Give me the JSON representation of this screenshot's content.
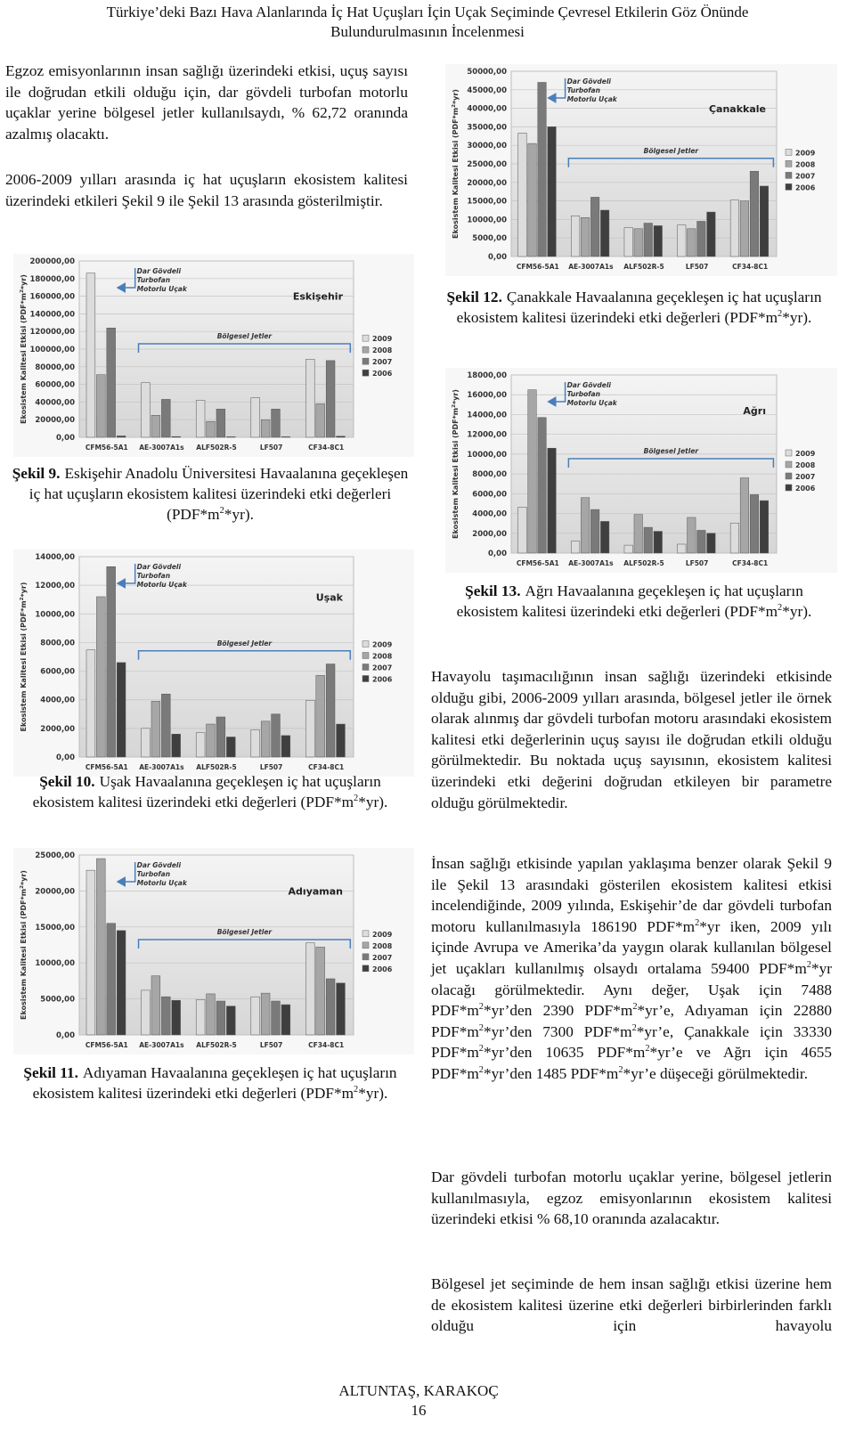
{
  "header": {
    "lines": [
      "Türkiye’deki Bazı Hava Alanlarında İç Hat Uçuşları İçin Uçak Seçiminde Çevresel Etkilerin Göz Önünde",
      "Bulundurulmasının İncelenmesi"
    ]
  },
  "paragraphs": [
    [
      "Egzoz emisyonlarının insan sağlığı üzerindeki etkisi, uçuş sayısı ile doğrudan etkili olduğu için, dar gövdeli turbofan motorlu uçaklar yerine bölgesel jetler kullanılsaydı, % 62,72 oranında azalmış olacaktı."
    ],
    [
      "2006-2009 yılları arasında iç hat uçuşların ekosistem kalitesi üzerindeki etkileri Şekil 9 ile Şekil 13 arasında gösterilmiştir."
    ],
    [
      "Havayolu taşımacılığının insan sağlığı üzerindeki etkisinde olduğu gibi, 2006-2009 yılları arasında, bölgesel jetler ile örnek olarak alınmış dar gövdeli turbofan motoru arasındaki ekosistem kalitesi etki değerlerinin uçuş sayısı ile doğrudan etkili olduğu görülmektedir. Bu noktada uçuş sayısının, ekosistem kalitesi üzerindeki etki değerini doğrudan etkileyen bir parametre olduğu görülmektedir."
    ],
    [
      "İnsan sağlığı etkisinde yapılan yaklaşıma benzer olarak Şekil 9 ile Şekil 13 arasındaki gösterilen ekosistem kalitesi etkisi incelendiğinde, 2009 yılında, Eskişehir’de dar gövdeli turbofan motoru kullanılmasıyla 186190 PDF*m",
      "2",
      "*yr iken, 2009 yılı içinde Avrupa ve Amerika’da yaygın olarak kullanılan bölgesel jet uçakları kullanılmış olsaydı ortalama 59400 PDF*m",
      "2",
      "*yr olacağı görülmektedir. Aynı değer, Uşak için 7488 PDF*m",
      "2",
      "*yr’den 2390 PDF*m",
      "2",
      "*yr’e, Adıyaman için 22880 PDF*m",
      "2",
      "*yr’den 7300 PDF*m",
      "2",
      "*yr’e, Çanakkale için 33330 PDF*m",
      "2",
      "*yr’den 10635 PDF*m",
      "2",
      "*yr’e ve Ağrı için 4655 PDF*m",
      "2",
      "*yr’den 1485 PDF*m",
      "2",
      "*yr’e düşeceği görülmektedir."
    ],
    [
      "Dar gövdeli turbofan motorlu uçaklar yerine, bölgesel jetlerin kullanılmasıyla, egzoz emisyonlarının ekosistem kalitesi üzerindeki etkisi % 68,10 oranında azalacaktır."
    ],
    [
      "Bölgesel jet seçiminde de hem insan sağlığı etkisi üzerine hem de ekosistem kalitesi üzerine etki değerleri birbirlerinden farklı olduğu için havayolu"
    ]
  ],
  "chart_data": [
    {
      "type": "bar",
      "title": "Eskişehir",
      "y_label": [
        "Ekosistem Kalitesi Etkisi (PDF*m",
        "2",
        "*yr)"
      ],
      "wide_body_note": [
        "Dar Gövdeli",
        "Turbofan",
        "Motorlu Uçak"
      ],
      "regional_note": "Bölgesel Jetler",
      "grid": true,
      "categories": [
        "CFM56-5A1",
        "AE-3007A1s",
        "ALF502R-5",
        "LF507",
        "CF34-8C1"
      ],
      "series": [
        {
          "name": "2009",
          "color": "#dcdcdc",
          "values": [
            186190,
            62000,
            42000,
            45000,
            88500
          ]
        },
        {
          "name": "2008",
          "color": "#a6a6a6",
          "values": [
            71000,
            25000,
            18000,
            20000,
            38000
          ]
        },
        {
          "name": "2007",
          "color": "#7a7a7a",
          "values": [
            124000,
            43000,
            32000,
            32000,
            87000
          ]
        },
        {
          "name": "2006",
          "color": "#3f3f3f",
          "values": [
            1500,
            800,
            600,
            600,
            1200
          ]
        }
      ],
      "ylim": [
        0,
        200000
      ],
      "yticks": [
        {
          "value": 0,
          "label": "0,00"
        },
        {
          "value": 20000,
          "label": "20000,00"
        },
        {
          "value": 40000,
          "label": "40000,00"
        },
        {
          "value": 60000,
          "label": "60000,00"
        },
        {
          "value": 80000,
          "label": "80000,00"
        },
        {
          "value": 100000,
          "label": "100000,00"
        },
        {
          "value": 120000,
          "label": "120000,00"
        },
        {
          "value": 140000,
          "label": "140000,00"
        },
        {
          "value": 160000,
          "label": "160000,00"
        },
        {
          "value": 180000,
          "label": "180000,00"
        },
        {
          "value": 200000,
          "label": "200000,00"
        }
      ],
      "caption_label": "Şekil 9.",
      "caption": [
        "Eskişehir Anadolu Üniversitesi Havaalanına geçekleşen iç hat uçuşların ekosistem kalitesi üzerindeki etki değerleri (PDF*m",
        "2",
        "*yr)."
      ]
    },
    {
      "type": "bar",
      "title": "Uşak",
      "y_label": [
        "Ekosistem Kalitesi Etkisi (PDF*m",
        "2",
        "*yr)"
      ],
      "wide_body_note": [
        "Dar Gövdeli",
        "Turbofan",
        "Motorlu Uçak"
      ],
      "regional_note": "Bölgesel Jetler",
      "grid": true,
      "categories": [
        "CFM56-5A1",
        "AE-3007A1s",
        "ALF502R-5",
        "LF507",
        "CF34-8C1"
      ],
      "series": [
        {
          "name": "2009",
          "color": "#dcdcdc",
          "values": [
            7488,
            2000,
            1700,
            1900,
            3960
          ]
        },
        {
          "name": "2008",
          "color": "#a6a6a6",
          "values": [
            11200,
            3900,
            2300,
            2500,
            5700
          ]
        },
        {
          "name": "2007",
          "color": "#7a7a7a",
          "values": [
            13300,
            4400,
            2800,
            3000,
            6500
          ]
        },
        {
          "name": "2006",
          "color": "#3f3f3f",
          "values": [
            6600,
            1600,
            1400,
            1500,
            2300
          ]
        }
      ],
      "ylim": [
        0,
        14000
      ],
      "yticks": [
        {
          "value": 0,
          "label": "0,00"
        },
        {
          "value": 2000,
          "label": "2000,00"
        },
        {
          "value": 4000,
          "label": "4000,00"
        },
        {
          "value": 6000,
          "label": "6000,00"
        },
        {
          "value": 8000,
          "label": "8000,00"
        },
        {
          "value": 10000,
          "label": "10000,00"
        },
        {
          "value": 12000,
          "label": "12000,00"
        },
        {
          "value": 14000,
          "label": "14000,00"
        }
      ],
      "caption_label": "Şekil 10.",
      "caption": [
        "Uşak Havaalanına geçekleşen iç hat uçuşların ekosistem kalitesi üzerindeki etki değerleri (PDF*m",
        "2",
        "*yr)."
      ]
    },
    {
      "type": "bar",
      "title": "Adıyaman",
      "y_label": [
        "Ekosistem Kalitesi Etkisi (PDF*m",
        "2",
        "*yr)"
      ],
      "wide_body_note": [
        "Dar Gövdeli",
        "Turbofan",
        "Motorlu Uçak"
      ],
      "regional_note": "Bölgesel Jetler",
      "grid": true,
      "categories": [
        "CFM56-5A1",
        "AE-3007A1s",
        "ALF502R-5",
        "LF507",
        "CF34-8C1"
      ],
      "series": [
        {
          "name": "2009",
          "color": "#dcdcdc",
          "values": [
            22880,
            6200,
            4900,
            5300,
            12800
          ]
        },
        {
          "name": "2008",
          "color": "#a6a6a6",
          "values": [
            24500,
            8200,
            5700,
            5800,
            12200
          ]
        },
        {
          "name": "2007",
          "color": "#7a7a7a",
          "values": [
            15500,
            5300,
            4700,
            4700,
            7800
          ]
        },
        {
          "name": "2006",
          "color": "#3f3f3f",
          "values": [
            14500,
            4800,
            4000,
            4200,
            7200
          ]
        }
      ],
      "ylim": [
        0,
        25000
      ],
      "yticks": [
        {
          "value": 0,
          "label": "0,00"
        },
        {
          "value": 5000,
          "label": "5000,00"
        },
        {
          "value": 10000,
          "label": "10000,00"
        },
        {
          "value": 15000,
          "label": "15000,00"
        },
        {
          "value": 20000,
          "label": "20000,00"
        },
        {
          "value": 25000,
          "label": "25000,00"
        }
      ],
      "caption_label": "Şekil 11.",
      "caption": [
        "Adıyaman Havaalanına geçekleşen iç hat uçuşların ekosistem kalitesi üzerindeki etki değerleri (PDF*m",
        "2",
        "*yr)."
      ]
    },
    {
      "type": "bar",
      "title": "Çanakkale",
      "y_label": [
        "Ekosistem Kalitesi Etkisi (PDF*m",
        "2",
        "*yr)"
      ],
      "wide_body_note": [
        "Dar Gövdeli",
        "Turbofan",
        "Motorlu Uçak"
      ],
      "regional_note": "Bölgesel Jetler",
      "grid": true,
      "categories": [
        "CFM56-5A1",
        "AE-3007A1s",
        "ALF502R-5",
        "LF507",
        "CF34-8C1"
      ],
      "series": [
        {
          "name": "2009",
          "color": "#dcdcdc",
          "values": [
            33330,
            11000,
            7800,
            8500,
            15240
          ]
        },
        {
          "name": "2008",
          "color": "#a6a6a6",
          "values": [
            30500,
            10500,
            7500,
            7500,
            15000
          ]
        },
        {
          "name": "2007",
          "color": "#7a7a7a",
          "values": [
            47000,
            16000,
            9000,
            9500,
            23000
          ]
        },
        {
          "name": "2006",
          "color": "#3f3f3f",
          "values": [
            35000,
            12500,
            8300,
            12000,
            19000
          ]
        }
      ],
      "ylim": [
        0,
        50000
      ],
      "yticks": [
        {
          "value": 0,
          "label": "0,00"
        },
        {
          "value": 5000,
          "label": "5000,00"
        },
        {
          "value": 10000,
          "label": "10000,00"
        },
        {
          "value": 15000,
          "label": "15000,00"
        },
        {
          "value": 20000,
          "label": "20000,00"
        },
        {
          "value": 25000,
          "label": "25000,00"
        },
        {
          "value": 30000,
          "label": "30000,00"
        },
        {
          "value": 35000,
          "label": "35000,00"
        },
        {
          "value": 40000,
          "label": "40000,00"
        },
        {
          "value": 45000,
          "label": "45000,00"
        },
        {
          "value": 50000,
          "label": "50000,00"
        }
      ],
      "caption_label": "Şekil 12.",
      "caption": [
        "Çanakkale Havaalanına geçekleşen iç hat uçuşların ekosistem kalitesi üzerindeki etki değerleri (PDF*m",
        "2",
        "*yr)."
      ]
    },
    {
      "type": "bar",
      "title": "Ağrı",
      "y_label": [
        "Ekosistem Kalitesi Etkisi (PDF*m",
        "2",
        "*yr)"
      ],
      "wide_body_note": [
        "Dar Gövdeli",
        "Turbofan",
        "Motorlu Uçak"
      ],
      "regional_note": "Bölgesel Jetler",
      "grid": true,
      "categories": [
        "CFM56-5A1",
        "AE-3007A1s",
        "ALF502R-5",
        "LF507",
        "CF34-8C1"
      ],
      "series": [
        {
          "name": "2009",
          "color": "#dcdcdc",
          "values": [
            4655,
            1200,
            800,
            900,
            3040
          ]
        },
        {
          "name": "2008",
          "color": "#a6a6a6",
          "values": [
            16500,
            5600,
            3900,
            3600,
            7600
          ]
        },
        {
          "name": "2007",
          "color": "#7a7a7a",
          "values": [
            13700,
            4400,
            2600,
            2300,
            5900
          ]
        },
        {
          "name": "2006",
          "color": "#3f3f3f",
          "values": [
            10600,
            3200,
            2200,
            2000,
            5300
          ]
        }
      ],
      "ylim": [
        0,
        18000
      ],
      "yticks": [
        {
          "value": 0,
          "label": "0,00"
        },
        {
          "value": 2000,
          "label": "2000,00"
        },
        {
          "value": 4000,
          "label": "4000,00"
        },
        {
          "value": 6000,
          "label": "6000,00"
        },
        {
          "value": 8000,
          "label": "8000,00"
        },
        {
          "value": 10000,
          "label": "10000,00"
        },
        {
          "value": 12000,
          "label": "12000,00"
        },
        {
          "value": 14000,
          "label": "14000,00"
        },
        {
          "value": 16000,
          "label": "16000,00"
        },
        {
          "value": 18000,
          "label": "18000,00"
        }
      ],
      "caption_label": "Şekil 13.",
      "caption": [
        "Ağrı Havaalanına geçekleşen iç hat uçuşların ekosistem kalitesi üzerindeki etki değerleri (PDF*m",
        "2",
        "*yr)."
      ]
    }
  ],
  "footer": {
    "authors": "ALTUNTAŞ, KARAKOÇ",
    "page": "16"
  }
}
